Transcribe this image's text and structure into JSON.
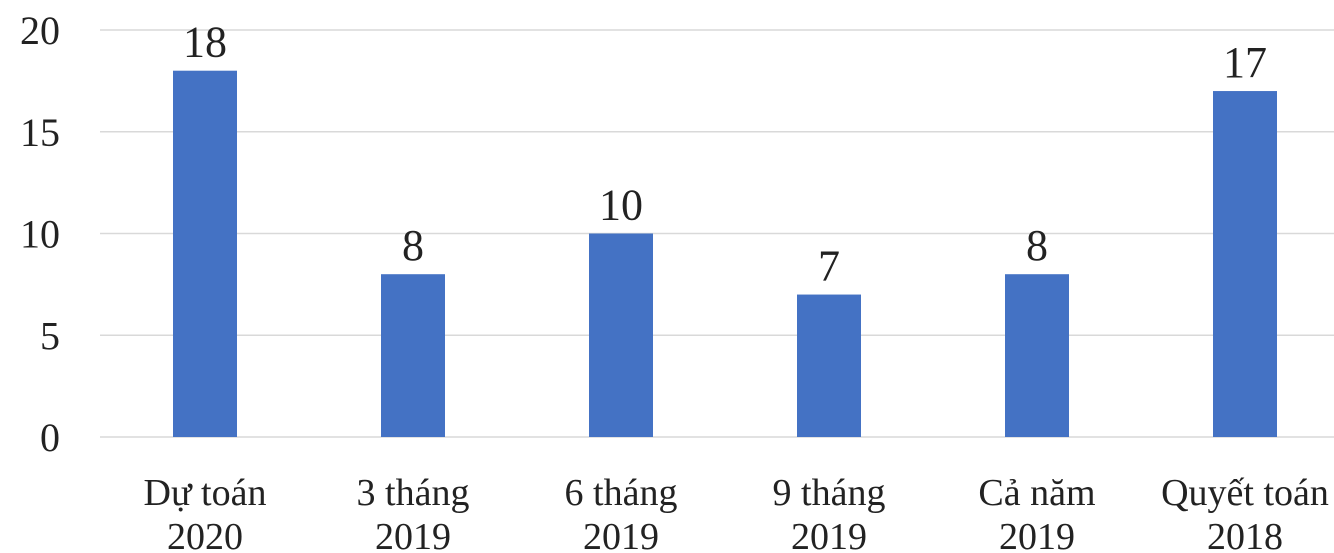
{
  "chart_data": {
    "type": "bar",
    "title": "",
    "xlabel": "",
    "ylabel": "",
    "ylim": [
      0,
      20
    ],
    "yticks": [
      0,
      5,
      10,
      15,
      20
    ],
    "grid": true,
    "categories": [
      [
        "Dự toán",
        "2020"
      ],
      [
        "3 tháng",
        "2019"
      ],
      [
        "6 tháng",
        "2019"
      ],
      [
        "9 tháng",
        "2019"
      ],
      [
        "Cả năm",
        "2019"
      ],
      [
        "Quyết toán",
        "2018"
      ]
    ],
    "values": [
      18,
      8,
      10,
      7,
      8,
      17
    ],
    "data_labels": [
      "18",
      "8",
      "10",
      "7",
      "8",
      "17"
    ],
    "bar_color": "#4472c4"
  }
}
